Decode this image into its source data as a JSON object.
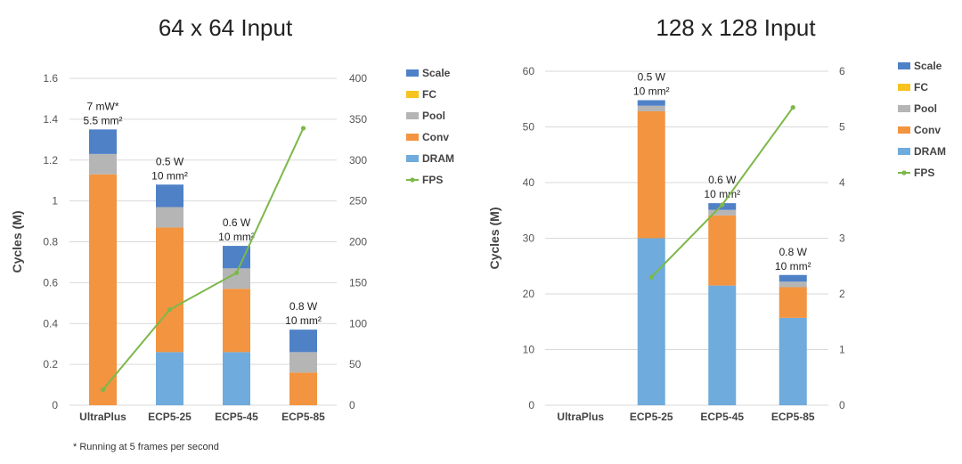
{
  "colors": {
    "Scale": "#4f81c7",
    "FC": "#f7c31f",
    "Pool": "#b5b5b5",
    "Conv": "#f39440",
    "DRAM": "#6fabdc",
    "FPS": "#7cb84a"
  },
  "footnote": "* Running at 5 frames per second",
  "chart_data": [
    {
      "type": "bar",
      "stacked": true,
      "title": "64 x 64 Input",
      "ylabel": "Cycles (M)",
      "ylim": [
        0,
        1.6
      ],
      "y_ticks": [
        "0",
        "0.2",
        "0.4",
        "0.6",
        "0.8",
        "1",
        "1.2",
        "1.4",
        "1.6"
      ],
      "y2lim": [
        0,
        400
      ],
      "y2_ticks": [
        "0",
        "50",
        "100",
        "150",
        "200",
        "250",
        "300",
        "350",
        "400"
      ],
      "categories": [
        "UltraPlus",
        "ECP5-25",
        "ECP5-45",
        "ECP5-85"
      ],
      "series": [
        {
          "name": "DRAM",
          "values": [
            0,
            0.26,
            0.26,
            0
          ]
        },
        {
          "name": "Conv",
          "values": [
            1.13,
            0.61,
            0.31,
            0.16
          ]
        },
        {
          "name": "Pool",
          "values": [
            0.1,
            0.1,
            0.1,
            0.1
          ]
        },
        {
          "name": "FC",
          "values": [
            0,
            0,
            0,
            0
          ]
        },
        {
          "name": "Scale",
          "values": [
            0.12,
            0.11,
            0.11,
            0.11
          ]
        }
      ],
      "line": {
        "name": "FPS",
        "axis": "secondary",
        "values": [
          19,
          117,
          162,
          339
        ]
      },
      "annotations": [
        {
          "lines": [
            "7 mW*",
            "5.5 mm²"
          ]
        },
        {
          "lines": [
            "0.5 W",
            "10 mm²"
          ]
        },
        {
          "lines": [
            "0.6 W",
            "10 mm²"
          ]
        },
        {
          "lines": [
            "0.8 W",
            "10 mm²"
          ]
        }
      ],
      "legend": [
        "Scale",
        "FC",
        "Pool",
        "Conv",
        "DRAM",
        "FPS"
      ],
      "legend_position": "right"
    },
    {
      "type": "bar",
      "stacked": true,
      "title": "128 x 128 Input",
      "ylabel": "Cycles (M)",
      "ylim": [
        0,
        60
      ],
      "y_ticks": [
        "0",
        "10",
        "20",
        "30",
        "40",
        "50",
        "60"
      ],
      "y2lim": [
        0,
        6
      ],
      "y2_ticks": [
        "0",
        "1",
        "2",
        "3",
        "4",
        "5",
        "6"
      ],
      "categories": [
        "UltraPlus",
        "ECP5-25",
        "ECP5-45",
        "ECP5-85"
      ],
      "series": [
        {
          "name": "DRAM",
          "values": [
            0,
            30,
            21.5,
            15.7
          ]
        },
        {
          "name": "Conv",
          "values": [
            0,
            22.8,
            12.6,
            5.5
          ]
        },
        {
          "name": "Pool",
          "values": [
            0,
            1,
            1,
            1
          ]
        },
        {
          "name": "FC",
          "values": [
            0,
            0,
            0,
            0
          ]
        },
        {
          "name": "Scale",
          "values": [
            0,
            1,
            1.2,
            1.2
          ]
        }
      ],
      "line": {
        "name": "FPS",
        "axis": "secondary",
        "values": [
          null,
          2.3,
          3.6,
          5.35
        ]
      },
      "annotations": [
        null,
        {
          "lines": [
            "0.5 W",
            "10 mm²"
          ]
        },
        {
          "lines": [
            "0.6 W",
            "10 mm²"
          ]
        },
        {
          "lines": [
            "0.8 W",
            "10 mm²"
          ]
        }
      ],
      "legend": [
        "Scale",
        "FC",
        "Pool",
        "Conv",
        "DRAM",
        "FPS"
      ],
      "legend_position": "right"
    }
  ]
}
